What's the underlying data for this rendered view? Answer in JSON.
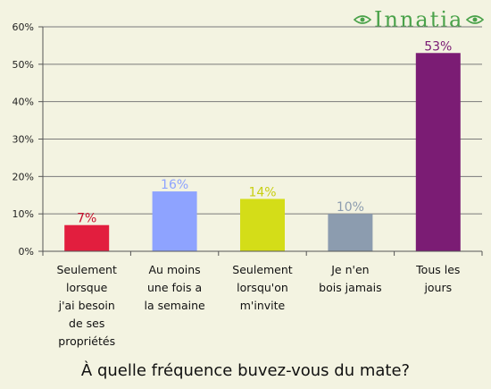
{
  "logo": {
    "text": "Innatia",
    "color": "#4aa24a"
  },
  "chart_data": {
    "type": "bar",
    "title": "À quelle fréquence buvez-vous du mate?",
    "categories": [
      "Seulement lorsque j'ai besoin de ses propriétés",
      "Au moins une fois a la semaine",
      "Seulement lorsqu'on m'invite",
      "Je n'en bois jamais",
      "Tous les jours"
    ],
    "category_lines": [
      [
        "Seulement",
        "lorsque",
        "j'ai besoin",
        "de ses",
        "propriétés"
      ],
      [
        "Au moins",
        "une fois a",
        "la semaine"
      ],
      [
        "Seulement",
        "lorsqu'on",
        "m'invite"
      ],
      [
        "Je n'en",
        "bois jamais"
      ],
      [
        "Tous les",
        "jours"
      ]
    ],
    "values": [
      7,
      16,
      14,
      10,
      53
    ],
    "data_labels": [
      "7%",
      "16%",
      "14%",
      "10%",
      "53%"
    ],
    "colors": [
      "#e21e3e",
      "#8ea3ff",
      "#d4dd18",
      "#8c9caf",
      "#7b1c74"
    ],
    "label_colors": [
      "#c8102e",
      "#8ea3ff",
      "#c8cf12",
      "#8c9caf",
      "#7b1c74"
    ],
    "ylim": [
      0,
      60
    ],
    "yticks": [
      0,
      10,
      20,
      30,
      40,
      50,
      60
    ],
    "ytick_labels": [
      "0%",
      "10%",
      "20%",
      "30%",
      "40%",
      "50%",
      "60%"
    ],
    "grid": true,
    "xlabel": "",
    "ylabel": ""
  }
}
